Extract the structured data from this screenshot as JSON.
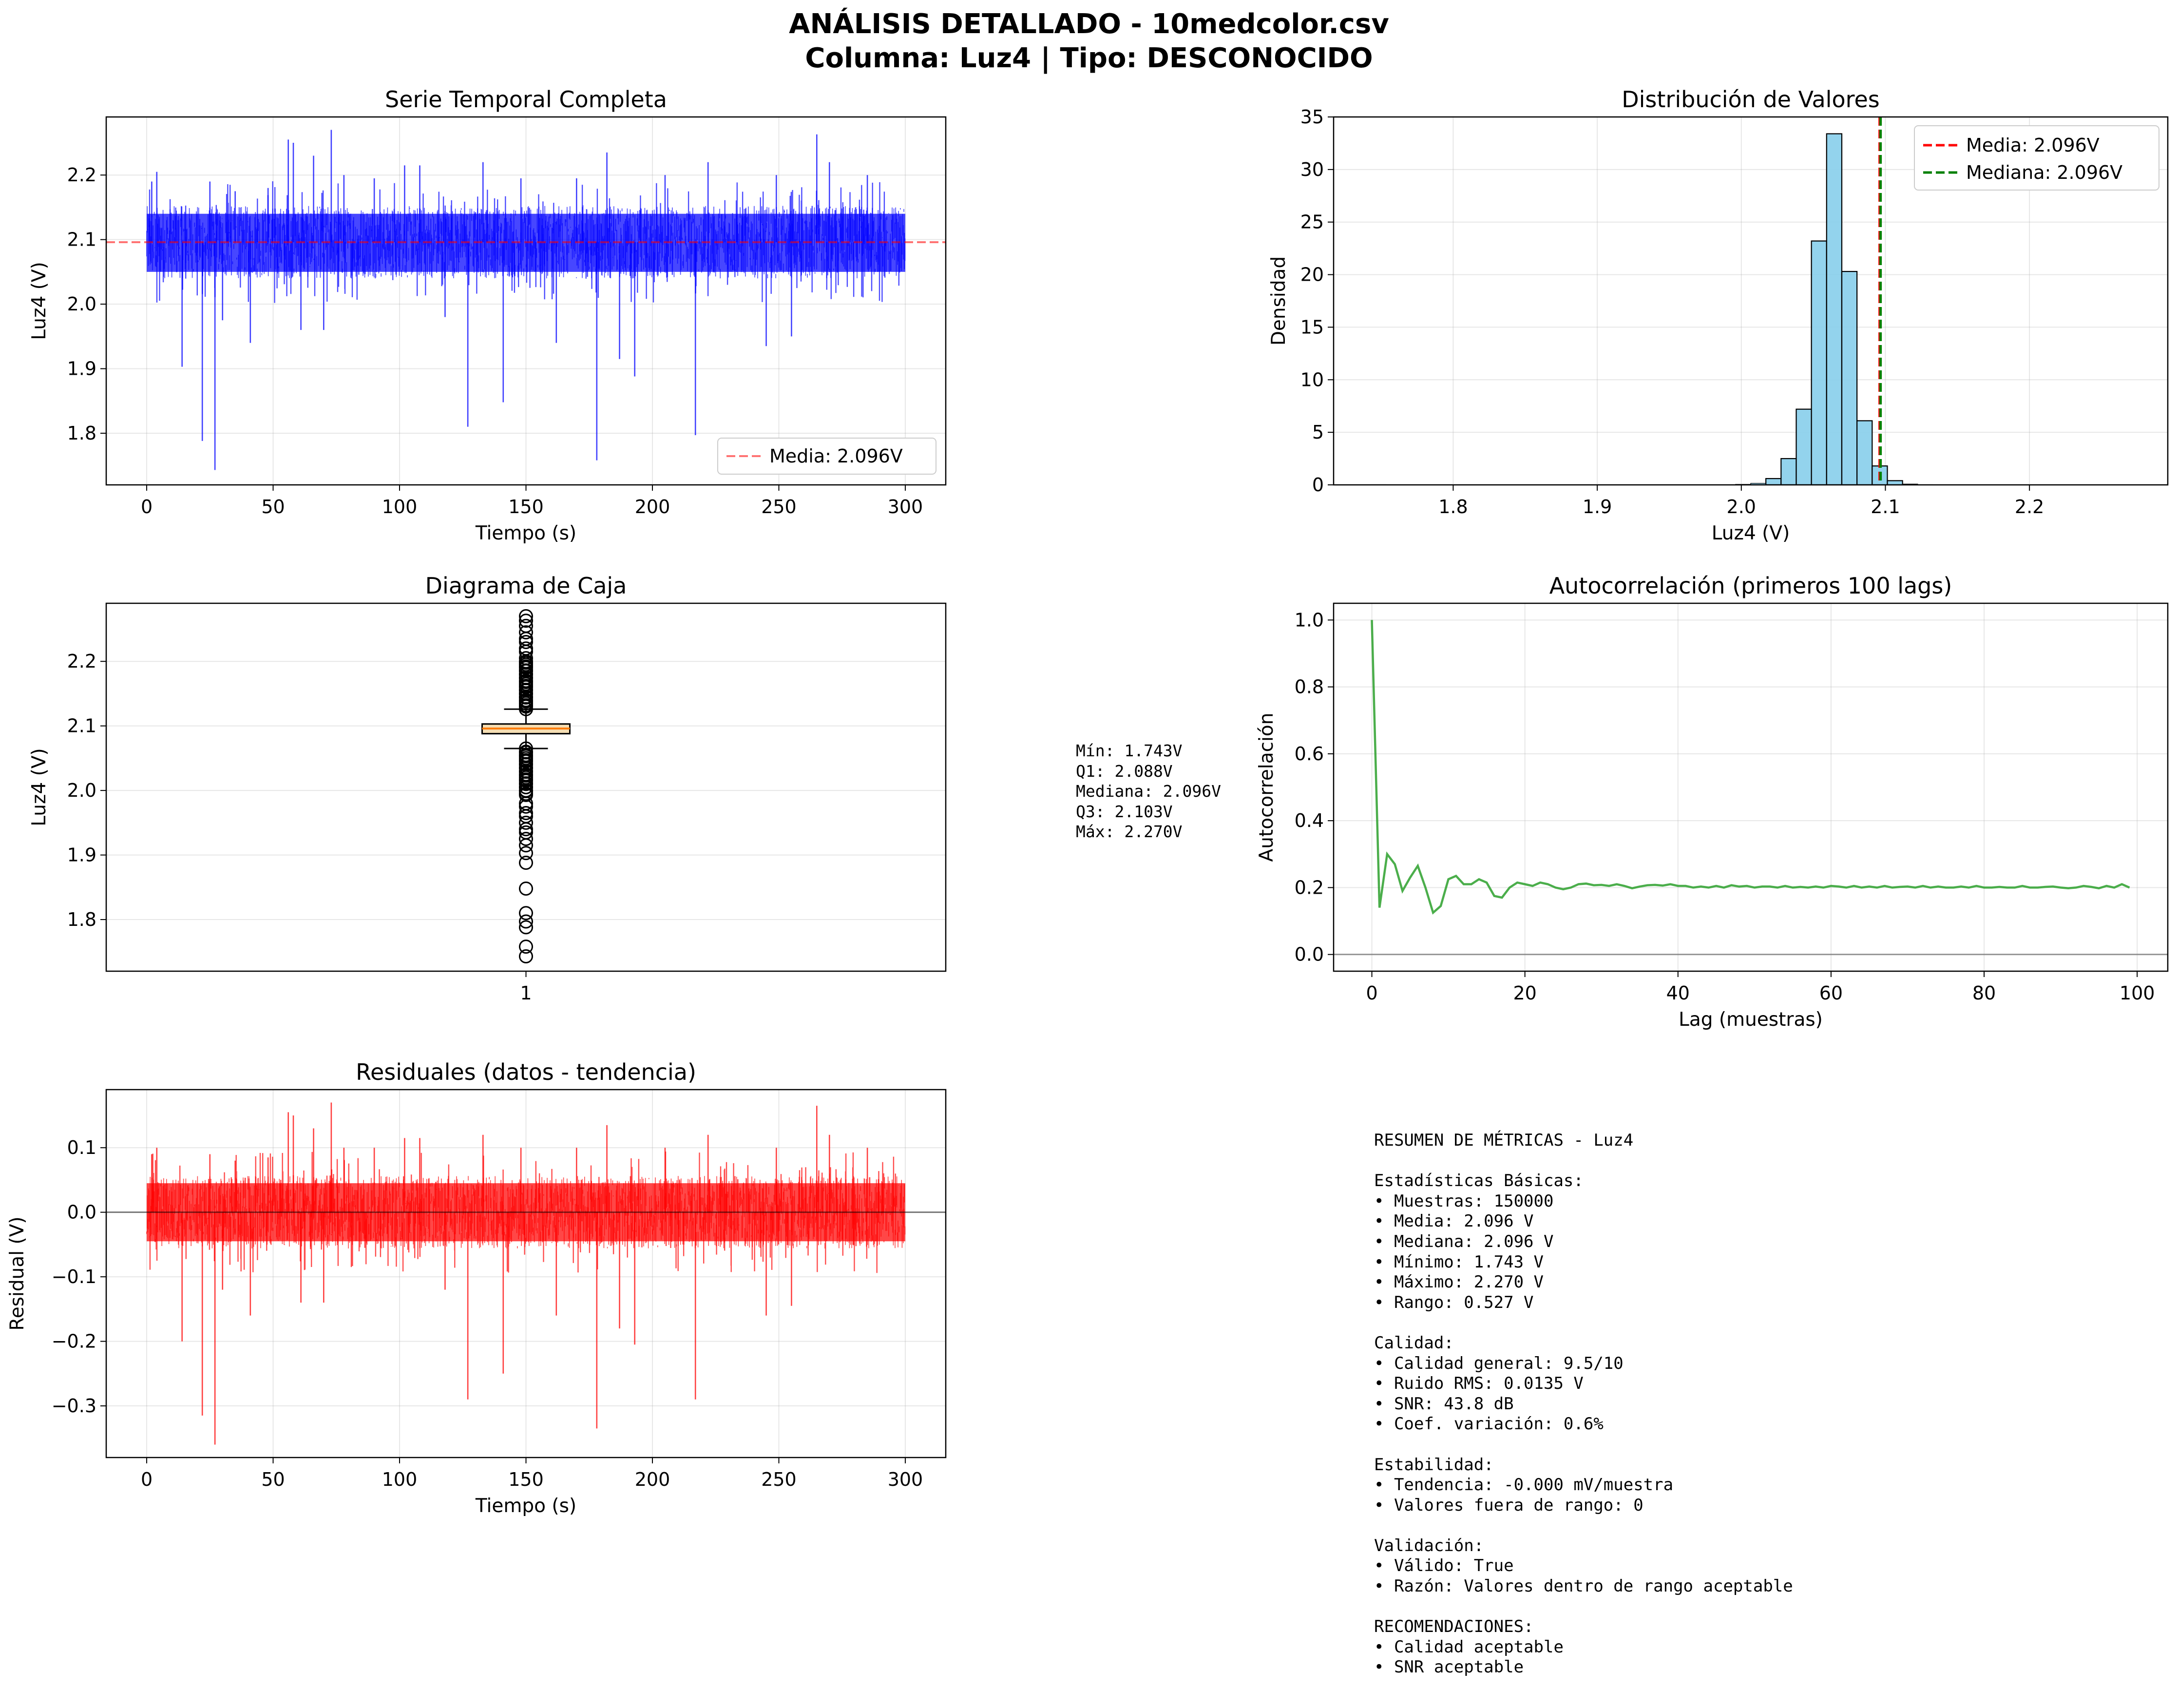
{
  "figure": {
    "title_line1": "ANÁLISIS DETALLADO - 10medcolor.csv",
    "title_line2": "Columna: Luz4 | Tipo: DESCONOCIDO",
    "colors": {
      "series": "#0000ff",
      "residual": "#ff0000",
      "acf": "#2ca02c",
      "hist": "#87ceeb",
      "mean": "#ff0000",
      "median": "#008000",
      "box": "#f5deb3"
    }
  },
  "box_stats_text": [
    "Mín: 1.743V",
    "Q1: 2.088V",
    "Mediana: 2.096V",
    "Q3: 2.103V",
    "Máx: 2.270V"
  ],
  "summary": {
    "lines": [
      "RESUMEN DE MÉTRICAS - Luz4",
      "",
      "Estadísticas Básicas:",
      "• Muestras: 150000",
      "• Media: 2.096 V",
      "• Mediana: 2.096 V",
      "• Mínimo: 1.743 V",
      "• Máximo: 2.270 V",
      "• Rango: 0.527 V",
      "",
      "Calidad:",
      "• Calidad general: 9.5/10",
      "• Ruido RMS: 0.0135 V",
      "• SNR: 43.8 dB",
      "• Coef. variación: 0.6%",
      "",
      "Estabilidad:",
      "• Tendencia: -0.000 mV/muestra",
      "• Valores fuera de rango: 0",
      "",
      "Validación:",
      "• Válido: True",
      "• Razón: Valores dentro de rango aceptable",
      "",
      "RECOMENDACIONES:",
      "• Calidad aceptable",
      "• SNR aceptable"
    ]
  },
  "chart_data": [
    {
      "id": "timeseries",
      "type": "line",
      "title": "Serie Temporal Completa",
      "xlabel": "Tiempo (s)",
      "ylabel": "Luz4 (V)",
      "xlim": [
        -16,
        316
      ],
      "ylim": [
        1.72,
        2.29
      ],
      "xticks": [
        0,
        50,
        100,
        150,
        200,
        250,
        300
      ],
      "yticks": [
        1.8,
        1.9,
        2.0,
        2.1,
        2.2
      ],
      "grid": true,
      "legend": "lower-right",
      "mean": 2.096,
      "mean_label": "Media: 2.096V",
      "noise_band": {
        "x": [
          0,
          300
        ],
        "y": [
          2.05,
          2.14
        ]
      },
      "spikes": [
        {
          "x": 2,
          "y": 2.19
        },
        {
          "x": 4,
          "y": 2.205
        },
        {
          "x": 14,
          "y": 1.903
        },
        {
          "x": 22,
          "y": 1.788
        },
        {
          "x": 25,
          "y": 2.19
        },
        {
          "x": 27,
          "y": 1.743
        },
        {
          "x": 30,
          "y": 1.975
        },
        {
          "x": 35,
          "y": 2.175
        },
        {
          "x": 41,
          "y": 1.94
        },
        {
          "x": 48,
          "y": 2.18
        },
        {
          "x": 56,
          "y": 2.255
        },
        {
          "x": 58,
          "y": 2.25
        },
        {
          "x": 61,
          "y": 1.96
        },
        {
          "x": 66,
          "y": 2.23
        },
        {
          "x": 70,
          "y": 1.96
        },
        {
          "x": 73,
          "y": 2.27
        },
        {
          "x": 78,
          "y": 2.2
        },
        {
          "x": 90,
          "y": 2.195
        },
        {
          "x": 102,
          "y": 2.215
        },
        {
          "x": 108,
          "y": 2.215
        },
        {
          "x": 118,
          "y": 1.98
        },
        {
          "x": 127,
          "y": 1.81
        },
        {
          "x": 133,
          "y": 2.22
        },
        {
          "x": 141,
          "y": 1.848
        },
        {
          "x": 148,
          "y": 2.195
        },
        {
          "x": 162,
          "y": 1.94
        },
        {
          "x": 170,
          "y": 2.195
        },
        {
          "x": 178,
          "y": 1.758
        },
        {
          "x": 182,
          "y": 2.235
        },
        {
          "x": 187,
          "y": 1.915
        },
        {
          "x": 193,
          "y": 1.888
        },
        {
          "x": 205,
          "y": 2.2
        },
        {
          "x": 217,
          "y": 1.797
        },
        {
          "x": 222,
          "y": 2.22
        },
        {
          "x": 245,
          "y": 1.935
        },
        {
          "x": 249,
          "y": 2.2
        },
        {
          "x": 255,
          "y": 1.95
        },
        {
          "x": 265,
          "y": 2.263
        },
        {
          "x": 270,
          "y": 2.22
        },
        {
          "x": 285,
          "y": 2.2
        }
      ]
    },
    {
      "id": "histogram",
      "type": "bar",
      "title": "Distribución de Valores",
      "xlabel": "Luz4 (V)",
      "ylabel": "Densidad",
      "xlim": [
        1.717,
        2.296
      ],
      "ylim": [
        0,
        35
      ],
      "xticks": [
        1.8,
        1.9,
        2.0,
        2.1,
        2.2
      ],
      "yticks": [
        0,
        5,
        10,
        15,
        20,
        25,
        30,
        35
      ],
      "grid": true,
      "legend": "top-right",
      "bin_start": 1.743,
      "bin_width": 0.01054,
      "values": [
        0.02,
        0,
        0,
        0,
        0,
        0,
        0,
        0,
        0,
        0,
        0,
        0,
        0,
        0,
        0,
        0,
        0,
        0,
        0,
        0,
        0,
        0,
        0,
        0,
        0.05,
        0.15,
        0.6,
        2.5,
        7.2,
        23.2,
        33.4,
        20.3,
        6.1,
        1.8,
        0.4,
        0.08,
        0.02,
        0.01,
        0,
        0,
        0,
        0,
        0,
        0,
        0,
        0,
        0,
        0,
        0,
        0.01
      ],
      "mean": 2.096,
      "median": 2.096,
      "mean_label": "Media: 2.096V",
      "median_label": "Mediana: 2.096V"
    },
    {
      "id": "boxplot",
      "type": "box",
      "title": "Diagrama de Caja",
      "ylabel": "Luz4 (V)",
      "xticklabels": [
        "1"
      ],
      "ylim": [
        1.72,
        2.29
      ],
      "yticks": [
        1.8,
        1.9,
        2.0,
        2.1,
        2.2
      ],
      "grid": true,
      "q1": 2.088,
      "median": 2.096,
      "q3": 2.103,
      "whisker_low": 2.065,
      "whisker_high": 2.126,
      "min": 1.743,
      "max": 2.27,
      "outliers_high": [
        2.13,
        2.135,
        2.14,
        2.145,
        2.15,
        2.155,
        2.16,
        2.165,
        2.17,
        2.175,
        2.18,
        2.185,
        2.19,
        2.195,
        2.2,
        2.205,
        2.215,
        2.22,
        2.23,
        2.235,
        2.245,
        2.255,
        2.263,
        2.27
      ],
      "outliers_low": [
        2.06,
        2.055,
        2.05,
        2.045,
        2.04,
        2.035,
        2.03,
        2.025,
        2.02,
        2.015,
        2.01,
        2.005,
        2.0,
        1.995,
        1.98,
        1.975,
        1.965,
        1.96,
        1.95,
        1.94,
        1.935,
        1.925,
        1.915,
        1.903,
        1.888,
        1.848,
        1.81,
        1.797,
        1.788,
        1.758,
        1.743
      ]
    },
    {
      "id": "autocorrelation",
      "type": "line",
      "title": "Autocorrelación (primeros 100 lags)",
      "xlabel": "Lag (muestras)",
      "ylabel": "Autocorrelación",
      "xlim": [
        -5,
        104
      ],
      "ylim": [
        -0.05,
        1.05
      ],
      "xticks": [
        0,
        20,
        40,
        60,
        80,
        100
      ],
      "yticks": [
        0.0,
        0.2,
        0.4,
        0.6,
        0.8,
        1.0
      ],
      "grid": true,
      "values": [
        1.0,
        0.14,
        0.3,
        0.27,
        0.19,
        0.23,
        0.265,
        0.2,
        0.125,
        0.145,
        0.225,
        0.235,
        0.21,
        0.21,
        0.225,
        0.215,
        0.175,
        0.17,
        0.2,
        0.215,
        0.21,
        0.205,
        0.215,
        0.21,
        0.2,
        0.195,
        0.2,
        0.21,
        0.212,
        0.207,
        0.208,
        0.205,
        0.21,
        0.205,
        0.198,
        0.203,
        0.207,
        0.208,
        0.206,
        0.21,
        0.205,
        0.205,
        0.2,
        0.203,
        0.2,
        0.205,
        0.2,
        0.207,
        0.203,
        0.205,
        0.2,
        0.203,
        0.203,
        0.2,
        0.205,
        0.2,
        0.202,
        0.2,
        0.203,
        0.2,
        0.205,
        0.203,
        0.2,
        0.205,
        0.2,
        0.203,
        0.2,
        0.205,
        0.2,
        0.202,
        0.203,
        0.2,
        0.205,
        0.2,
        0.203,
        0.2,
        0.2,
        0.203,
        0.2,
        0.205,
        0.2,
        0.2,
        0.202,
        0.2,
        0.2,
        0.205,
        0.2,
        0.2,
        0.202,
        0.203,
        0.2,
        0.198,
        0.2,
        0.205,
        0.202,
        0.198,
        0.205,
        0.2,
        0.21,
        0.2
      ]
    },
    {
      "id": "residuals",
      "type": "line",
      "title": "Residuales (datos - tendencia)",
      "xlabel": "Tiempo (s)",
      "ylabel": "Residual (V)",
      "xlim": [
        -16,
        316
      ],
      "ylim": [
        -0.38,
        0.19
      ],
      "xticks": [
        0,
        50,
        100,
        150,
        200,
        250,
        300
      ],
      "yticks": [
        -0.3,
        -0.2,
        -0.1,
        0.0,
        0.1
      ],
      "grid": true,
      "noise_band": {
        "x": [
          0,
          300
        ],
        "y": [
          -0.045,
          0.045
        ]
      },
      "spikes": [
        {
          "x": 2,
          "y": 0.09
        },
        {
          "x": 4,
          "y": 0.1
        },
        {
          "x": 14,
          "y": -0.2
        },
        {
          "x": 22,
          "y": -0.315
        },
        {
          "x": 25,
          "y": 0.09
        },
        {
          "x": 27,
          "y": -0.36
        },
        {
          "x": 30,
          "y": -0.12
        },
        {
          "x": 35,
          "y": 0.08
        },
        {
          "x": 41,
          "y": -0.16
        },
        {
          "x": 48,
          "y": 0.085
        },
        {
          "x": 56,
          "y": 0.155
        },
        {
          "x": 58,
          "y": 0.15
        },
        {
          "x": 61,
          "y": -0.14
        },
        {
          "x": 66,
          "y": 0.13
        },
        {
          "x": 70,
          "y": -0.14
        },
        {
          "x": 73,
          "y": 0.17
        },
        {
          "x": 78,
          "y": 0.1
        },
        {
          "x": 90,
          "y": 0.1
        },
        {
          "x": 102,
          "y": 0.115
        },
        {
          "x": 108,
          "y": 0.115
        },
        {
          "x": 118,
          "y": -0.12
        },
        {
          "x": 127,
          "y": -0.29
        },
        {
          "x": 133,
          "y": 0.12
        },
        {
          "x": 141,
          "y": -0.25
        },
        {
          "x": 148,
          "y": 0.1
        },
        {
          "x": 162,
          "y": -0.16
        },
        {
          "x": 170,
          "y": 0.1
        },
        {
          "x": 178,
          "y": -0.335
        },
        {
          "x": 182,
          "y": 0.135
        },
        {
          "x": 187,
          "y": -0.18
        },
        {
          "x": 193,
          "y": -0.205
        },
        {
          "x": 205,
          "y": 0.1
        },
        {
          "x": 217,
          "y": -0.29
        },
        {
          "x": 222,
          "y": 0.12
        },
        {
          "x": 245,
          "y": -0.16
        },
        {
          "x": 249,
          "y": 0.1
        },
        {
          "x": 255,
          "y": -0.145
        },
        {
          "x": 265,
          "y": 0.165
        },
        {
          "x": 270,
          "y": 0.12
        },
        {
          "x": 285,
          "y": 0.1
        }
      ]
    }
  ]
}
